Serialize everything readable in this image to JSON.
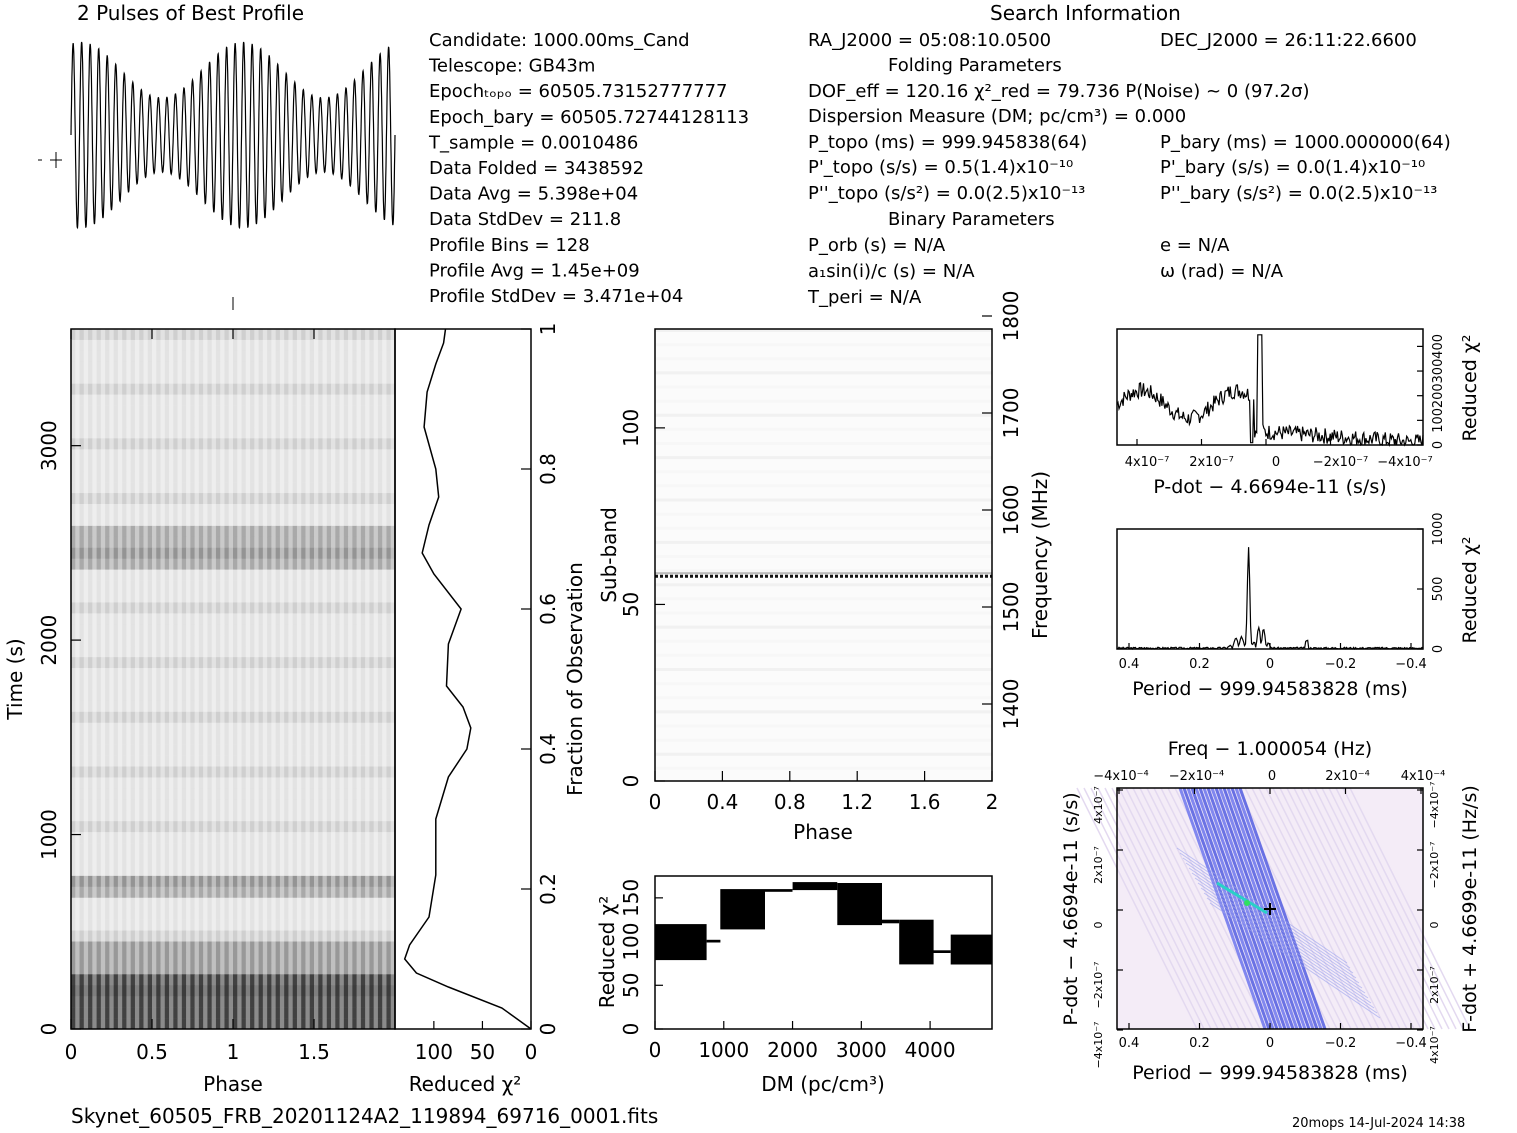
{
  "header": {
    "profile_title": "2 Pulses of Best Profile",
    "search_info_title": "Search Information",
    "footer_file": "Skynet_60505_FRB_20201124A2_119894_69716_0001.fits",
    "footer_stamp": "20mops  14-Jul-2024 14:38"
  },
  "info_left": [
    "Candidate:   1000.00ms_Cand",
    "Telescope:   GB43m",
    "Epochₜₒₚₒ  =  60505.73152777777",
    "Epoch_bary  =  60505.72744128113",
    "T_sample       =   0.0010486",
    "Data Folded    =   3438592",
    "Data Avg        =   5.398e+04",
    "Data StdDev    =   211.8",
    "Profile Bins     =   128",
    "Profile Avg      =   1.45e+09",
    "Profile StdDev  =   3.471e+04"
  ],
  "info_mid": {
    "ra": "RA_J2000 = 05:08:10.0500",
    "folding_title": "Folding Parameters",
    "dof": "DOF_eff = 120.16   χ²_red = 79.736   P(Noise) ~ 0    (97.2σ)",
    "dm": "Dispersion Measure (DM; pc/cm³) = 0.000",
    "ptopo": "P_topo (ms) =  999.945838(64)",
    "pdtopo": "P'_topo (s/s) =  0.5(1.4)x10⁻¹⁰",
    "pddtopo": "P''_topo (s/s²) = 0.0(2.5)x10⁻¹³",
    "binary_title": "Binary Parameters",
    "porb": "P_orb (s) = N/A",
    "asini": "a₁sin(i)/c (s) = N/A",
    "tperi": "T_peri = N/A"
  },
  "info_right": {
    "dec": "DEC_J2000 = 26:11:22.6600",
    "pbary": "P_bary (ms) =  1000.000000(64)",
    "pdbary": "P'_bary (s/s) = 0.0(1.4)x10⁻¹⁰",
    "pddbary": "P''_bary (s/s²) = 0.0(2.5)x10⁻¹³",
    "ecc": "e = N/A",
    "omega": "ω (rad) = N/A"
  },
  "labels": {
    "time_axis": "Time (s)",
    "phase": "Phase",
    "reduced_chi2": "Reduced χ²",
    "fraction_obs": "Fraction of Observation",
    "subband": "Sub-band",
    "frequency": "Frequency (MHz)",
    "dm_axis": "DM (pc/cm³)",
    "pdot_axis": "P-dot − 4.6694e-11 (s/s)",
    "period_axis": "Period − 999.94583828 (ms)",
    "freq_axis": "Freq − 1.000054 (Hz)",
    "pdot_left": "P-dot − 4.6694e-11 (s/s)",
    "fdot_right": "F-dot + 4.6699e-11 (Hz/s)"
  },
  "chart_data": [
    {
      "type": "line",
      "name": "pulse-profile",
      "title": "2 Pulses of Best Profile",
      "x": "phase 0-2",
      "pulses_per_period": 19,
      "ylim": [
        0,
        1
      ]
    },
    {
      "type": "heatmap",
      "name": "time-phase",
      "xlabel": "Phase",
      "ylabel": "Time (s)",
      "xlim": [
        0,
        2
      ],
      "ylim": [
        0,
        3600
      ],
      "xticks": [
        "0",
        "0.5",
        "1",
        "1.5"
      ],
      "yticks": [
        "0",
        "1000",
        "2000",
        "3000"
      ]
    },
    {
      "type": "line",
      "name": "chi2-vs-time",
      "xlabel": "Reduced χ²",
      "xticks": [
        "100",
        "50",
        "0"
      ],
      "right_label": "Fraction of Observation",
      "right_ticks": [
        "0",
        "0.2",
        "0.4",
        "0.6",
        "0.8",
        "1"
      ],
      "points": [
        [
          0,
          0
        ],
        [
          30,
          0.03
        ],
        [
          85,
          0.06
        ],
        [
          118,
          0.08
        ],
        [
          130,
          0.1
        ],
        [
          125,
          0.12
        ],
        [
          105,
          0.16
        ],
        [
          98,
          0.22
        ],
        [
          98,
          0.3
        ],
        [
          85,
          0.36
        ],
        [
          66,
          0.4
        ],
        [
          62,
          0.43
        ],
        [
          70,
          0.46
        ],
        [
          87,
          0.49
        ],
        [
          85,
          0.55
        ],
        [
          72,
          0.6
        ],
        [
          100,
          0.65
        ],
        [
          112,
          0.68
        ],
        [
          105,
          0.72
        ],
        [
          95,
          0.76
        ],
        [
          98,
          0.8
        ],
        [
          110,
          0.86
        ],
        [
          107,
          0.91
        ],
        [
          98,
          0.95
        ],
        [
          90,
          0.98
        ],
        [
          88,
          1.0
        ]
      ]
    },
    {
      "type": "heatmap",
      "name": "subband-phase",
      "xlabel": "Phase",
      "ylabel": "Sub-band",
      "xticks": [
        "0",
        "0.4",
        "0.8",
        "1.2",
        "1.6",
        "2"
      ],
      "yticks": [
        "0",
        "50",
        "100"
      ],
      "right_label": "Frequency (MHz)",
      "right_ticks": [
        "1400",
        "1500",
        "1600",
        "1700",
        "1800"
      ],
      "ylim": [
        0,
        128
      ],
      "bright_subband": 58
    },
    {
      "type": "line",
      "name": "chi2-vs-dm",
      "xlabel": "DM (pc/cm³)",
      "ylabel": "Reduced χ²",
      "xlim": [
        0,
        4900
      ],
      "ylim": [
        0,
        175
      ],
      "xticks": [
        "0",
        "1000",
        "2000",
        "3000",
        "4000"
      ],
      "yticks": [
        "0",
        "50",
        "100",
        "150"
      ],
      "segments": [
        [
          0,
          750,
          80,
          120
        ],
        [
          750,
          950,
          100,
          102
        ],
        [
          950,
          1600,
          115,
          160
        ],
        [
          1600,
          2000,
          158,
          160
        ],
        [
          2000,
          2650,
          160,
          168
        ],
        [
          2650,
          3300,
          120,
          167
        ],
        [
          3300,
          3550,
          122,
          125
        ],
        [
          3550,
          4050,
          75,
          125
        ],
        [
          4050,
          4300,
          88,
          90
        ],
        [
          4300,
          4900,
          75,
          108
        ]
      ]
    },
    {
      "type": "line",
      "name": "chi2-vs-pdot",
      "xlabel": "P-dot − 4.6694e-11 (s/s)",
      "ylabel": "Reduced χ²",
      "xticks": [
        "4x10⁻⁷",
        "2x10⁻⁷",
        "0",
        "−2x10⁻⁷",
        "−4x10⁻⁷"
      ],
      "yticks": [
        "0",
        "100",
        "200",
        "300",
        "400"
      ],
      "ylim": [
        0,
        400
      ]
    },
    {
      "type": "line",
      "name": "chi2-vs-period",
      "xlabel": "Period − 999.94583828 (ms)",
      "ylabel": "Reduced χ²",
      "xticks": [
        "0.4",
        "0.2",
        "0",
        "−0.2",
        "−0.4"
      ],
      "yticks": [
        "0",
        "500",
        "1000"
      ],
      "ylim": [
        0,
        1000
      ],
      "peak": {
        "x": 0.05,
        "y": 800
      }
    },
    {
      "type": "heatmap",
      "name": "period-pdot",
      "title": "Freq − 1.000054 (Hz)",
      "xlabel": "Period − 999.94583828 (ms)",
      "xticks": [
        "0.4",
        "0.2",
        "0",
        "−0.2",
        "−0.4"
      ],
      "top_ticks": [
        "−4x10⁻⁴",
        "−2x10⁻⁴",
        "0",
        "2x10⁻⁴",
        "4x10⁻⁴"
      ],
      "left_ticks": [
        "4x10⁻⁷",
        "2x10⁻⁷",
        "0",
        "−2x10⁻⁷",
        "−4x10⁻⁷"
      ],
      "right_ticks": [
        "−4x10⁻⁷",
        "−2x10⁻⁷",
        "0",
        "2x10⁻⁷",
        "4x10⁻⁷"
      ]
    }
  ]
}
